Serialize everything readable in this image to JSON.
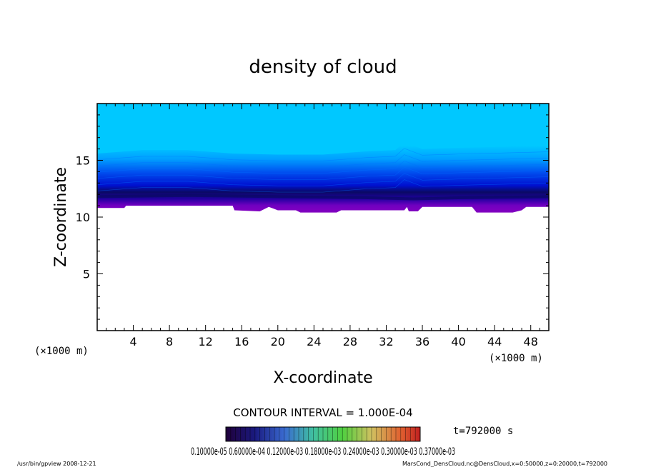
{
  "chart_data": {
    "type": "contour",
    "title": "density of cloud",
    "xlabel": "X-coordinate",
    "ylabel": "Z-coordinate",
    "x_unit_left": "(×1000 m)",
    "x_unit_right": "(×1000 m)",
    "xlim": [
      0,
      50
    ],
    "ylim": [
      0,
      20
    ],
    "x_ticks": [
      "4",
      "8",
      "12",
      "16",
      "20",
      "24",
      "28",
      "32",
      "36",
      "40",
      "44",
      "48"
    ],
    "y_ticks": [
      "5",
      "10",
      "15"
    ],
    "x_tick_values": [
      4,
      8,
      12,
      16,
      20,
      24,
      28,
      32,
      36,
      40,
      44,
      48
    ],
    "y_tick_values": [
      5,
      10,
      15
    ],
    "field": {
      "top_z": 20,
      "upper_gradient_top": [
        [
          0,
          15.6
        ],
        [
          5,
          15.9
        ],
        [
          10,
          15.9
        ],
        [
          15,
          15.6
        ],
        [
          20,
          15.5
        ],
        [
          25,
          15.5
        ],
        [
          30,
          15.8
        ],
        [
          33,
          15.9
        ],
        [
          34,
          16.6
        ],
        [
          36,
          16.0
        ],
        [
          40,
          16.1
        ],
        [
          45,
          16.2
        ],
        [
          50,
          16.3
        ]
      ],
      "dark_core": [
        [
          0,
          11.8
        ],
        [
          10,
          11.9
        ],
        [
          20,
          11.8
        ],
        [
          30,
          11.7
        ],
        [
          35,
          11.6
        ],
        [
          40,
          11.7
        ],
        [
          50,
          11.8
        ]
      ],
      "cloud_base": [
        [
          0,
          10.8
        ],
        [
          3,
          10.8
        ],
        [
          3.2,
          11.0
        ],
        [
          15,
          11.0
        ],
        [
          15.2,
          10.6
        ],
        [
          18,
          10.5
        ],
        [
          19,
          10.9
        ],
        [
          20,
          10.6
        ],
        [
          22,
          10.6
        ],
        [
          22.5,
          10.4
        ],
        [
          26.5,
          10.4
        ],
        [
          27,
          10.6
        ],
        [
          34,
          10.6
        ],
        [
          34.3,
          10.9
        ],
        [
          34.5,
          10.5
        ],
        [
          35.5,
          10.5
        ],
        [
          36,
          10.9
        ],
        [
          41.5,
          10.9
        ],
        [
          42,
          10.4
        ],
        [
          46,
          10.4
        ],
        [
          47,
          10.6
        ],
        [
          47.5,
          10.9
        ],
        [
          50,
          10.9
        ]
      ]
    },
    "contour_interval": "CONTOUR INTERVAL = 1.000E-04",
    "time_label": "t=792000 s",
    "colorbar_labels": "0.10000e-05 0.60000e-04 0.12000e-03 0.18000e-03 0.24000e-03 0.30000e-03 0.37000e-03"
  },
  "footer": {
    "left": "/usr/bin/gpview   2008-12-21",
    "right": "MarsCond_DensCloud.nc@DensCloud,x=0:50000,z=0:20000,t=792000"
  },
  "colors": {
    "sky": "#00c8ff",
    "mid_blue": "#0064ff",
    "deep_blue": "#0010e0",
    "core": "#0a0a64",
    "base_purple": "#8000c0",
    "background": "#ffffff"
  }
}
